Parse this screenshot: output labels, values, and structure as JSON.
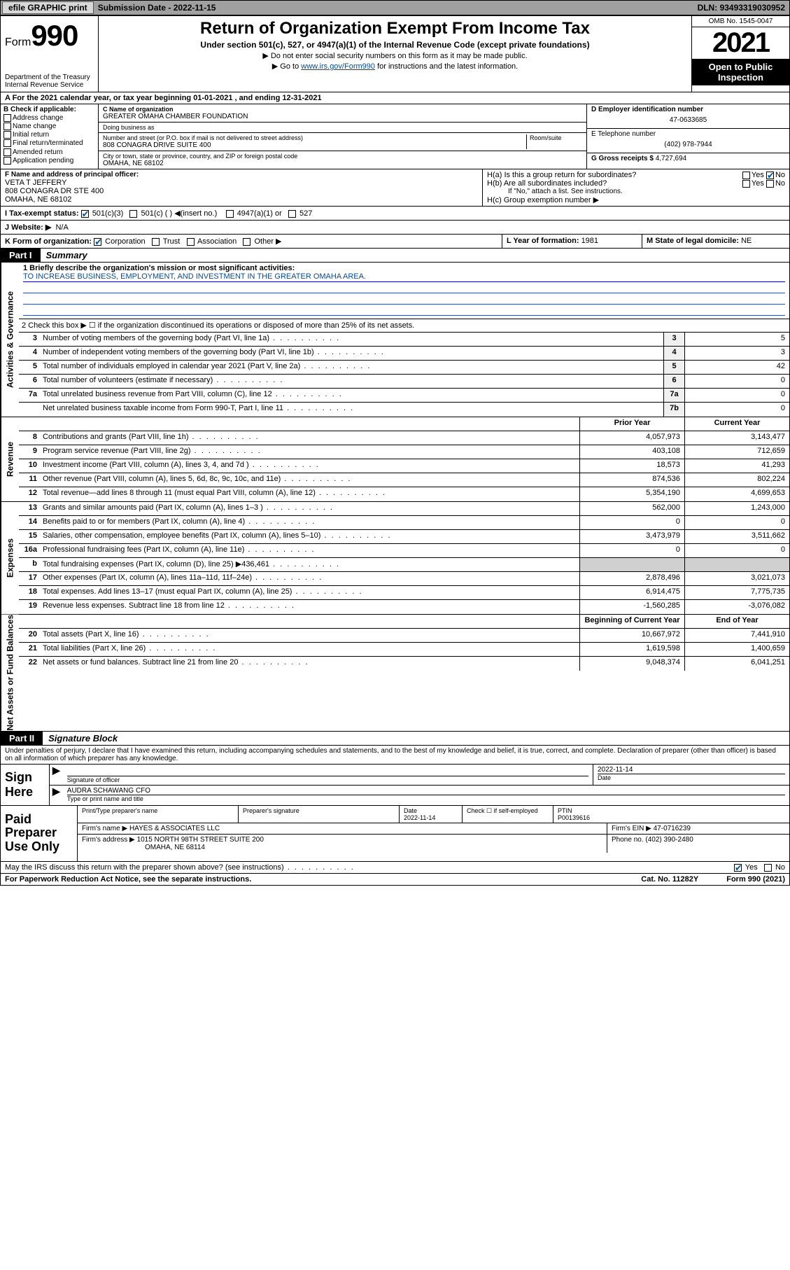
{
  "topbar": {
    "efile": "efile GRAPHIC print",
    "submission_label": "Submission Date - ",
    "submission_date": "2022-11-15",
    "dln_label": "DLN: ",
    "dln": "93493319030952"
  },
  "header": {
    "form_word": "Form",
    "form_num": "990",
    "dept": "Department of the Treasury",
    "irs": "Internal Revenue Service",
    "title": "Return of Organization Exempt From Income Tax",
    "subtitle": "Under section 501(c), 527, or 4947(a)(1) of the Internal Revenue Code (except private foundations)",
    "note1": "▶ Do not enter social security numbers on this form as it may be made public.",
    "note2_pre": "▶ Go to ",
    "note2_link": "www.irs.gov/Form990",
    "note2_post": " for instructions and the latest information.",
    "omb": "OMB No. 1545-0047",
    "year": "2021",
    "inspect": "Open to Public Inspection"
  },
  "row_a": "A For the 2021 calendar year, or tax year beginning 01-01-2021   , and ending 12-31-2021",
  "section_b": {
    "label": "B Check if applicable:",
    "addr": "Address change",
    "name": "Name change",
    "init": "Initial return",
    "final": "Final return/terminated",
    "amend": "Amended return",
    "app": "Application pending"
  },
  "section_c": {
    "name_label": "C Name of organization",
    "name": "GREATER OMAHA CHAMBER FOUNDATION",
    "dba_label": "Doing business as",
    "dba": "",
    "street_label": "Number and street (or P.O. box if mail is not delivered to street address)",
    "room_label": "Room/suite",
    "street": "808 CONAGRA DRIVE SUITE 400",
    "city_label": "City or town, state or province, country, and ZIP or foreign postal code",
    "city": "OMAHA, NE  68102"
  },
  "section_d": {
    "label": "D Employer identification number",
    "ein": "47-0633685"
  },
  "section_e": {
    "label": "E Telephone number",
    "phone": "(402) 978-7944"
  },
  "section_g": {
    "label": "G Gross receipts $ ",
    "amount": "4,727,694"
  },
  "section_f": {
    "label": "F Name and address of principal officer:",
    "name": "VETA T JEFFERY",
    "addr1": "808 CONAGRA DR STE 400",
    "addr2": "OMAHA, NE  68102"
  },
  "section_h": {
    "ha": "H(a)  Is this a group return for subordinates?",
    "hb": "H(b)  Are all subordinates included?",
    "hb_note": "If \"No,\" attach a list. See instructions.",
    "hc": "H(c)  Group exemption number ▶",
    "yes": "Yes",
    "no": "No"
  },
  "row_i": {
    "label": "I   Tax-exempt status:",
    "c3": "501(c)(3)",
    "c": "501(c) (  ) ◀(insert no.)",
    "a1": "4947(a)(1) or",
    "s527": "527"
  },
  "row_j": {
    "label": "J   Website: ▶",
    "val": "N/A"
  },
  "row_k": {
    "label": "K Form of organization:",
    "corp": "Corporation",
    "trust": "Trust",
    "assoc": "Association",
    "other": "Other ▶"
  },
  "row_l": {
    "label": "L Year of formation: ",
    "val": "1981"
  },
  "row_m": {
    "label": "M State of legal domicile: ",
    "val": "NE"
  },
  "parts": {
    "p1": "Part I",
    "p1t": "Summary",
    "p2": "Part II",
    "p2t": "Signature Block"
  },
  "vlabels": {
    "gov": "Activities & Governance",
    "rev": "Revenue",
    "exp": "Expenses",
    "net": "Net Assets or Fund Balances"
  },
  "summary": {
    "q1_label": "1   Briefly describe the organization's mission or most significant activities:",
    "q1_val": "TO INCREASE BUSINESS, EMPLOYMENT, AND INVESTMENT IN THE GREATER OMAHA AREA.",
    "q2": "2   Check this box ▶ ☐ if the organization discontinued its operations or disposed of more than 25% of its net assets.",
    "col_prior": "Prior Year",
    "col_current": "Current Year",
    "col_begin": "Beginning of Current Year",
    "col_end": "End of Year",
    "lines_single": [
      {
        "n": "3",
        "d": "Number of voting members of the governing body (Part VI, line 1a)",
        "box": "3",
        "v": "5"
      },
      {
        "n": "4",
        "d": "Number of independent voting members of the governing body (Part VI, line 1b)",
        "box": "4",
        "v": "3"
      },
      {
        "n": "5",
        "d": "Total number of individuals employed in calendar year 2021 (Part V, line 2a)",
        "box": "5",
        "v": "42"
      },
      {
        "n": "6",
        "d": "Total number of volunteers (estimate if necessary)",
        "box": "6",
        "v": "0"
      },
      {
        "n": "7a",
        "d": "Total unrelated business revenue from Part VIII, column (C), line 12",
        "box": "7a",
        "v": "0"
      },
      {
        "n": "",
        "d": "Net unrelated business taxable income from Form 990-T, Part I, line 11",
        "box": "7b",
        "v": "0"
      }
    ],
    "lines_rev": [
      {
        "n": "8",
        "d": "Contributions and grants (Part VIII, line 1h)",
        "p": "4,057,973",
        "c": "3,143,477"
      },
      {
        "n": "9",
        "d": "Program service revenue (Part VIII, line 2g)",
        "p": "403,108",
        "c": "712,659"
      },
      {
        "n": "10",
        "d": "Investment income (Part VIII, column (A), lines 3, 4, and 7d )",
        "p": "18,573",
        "c": "41,293"
      },
      {
        "n": "11",
        "d": "Other revenue (Part VIII, column (A), lines 5, 6d, 8c, 9c, 10c, and 11e)",
        "p": "874,536",
        "c": "802,224"
      },
      {
        "n": "12",
        "d": "Total revenue—add lines 8 through 11 (must equal Part VIII, column (A), line 12)",
        "p": "5,354,190",
        "c": "4,699,653"
      }
    ],
    "lines_exp": [
      {
        "n": "13",
        "d": "Grants and similar amounts paid (Part IX, column (A), lines 1–3 )",
        "p": "562,000",
        "c": "1,243,000"
      },
      {
        "n": "14",
        "d": "Benefits paid to or for members (Part IX, column (A), line 4)",
        "p": "0",
        "c": "0"
      },
      {
        "n": "15",
        "d": "Salaries, other compensation, employee benefits (Part IX, column (A), lines 5–10)",
        "p": "3,473,979",
        "c": "3,511,662"
      },
      {
        "n": "16a",
        "d": "Professional fundraising fees (Part IX, column (A), line 11e)",
        "p": "0",
        "c": "0"
      },
      {
        "n": "b",
        "d": "Total fundraising expenses (Part IX, column (D), line 25) ▶436,461",
        "p": "",
        "c": "",
        "grey": true
      },
      {
        "n": "17",
        "d": "Other expenses (Part IX, column (A), lines 11a–11d, 11f–24e)",
        "p": "2,878,496",
        "c": "3,021,073"
      },
      {
        "n": "18",
        "d": "Total expenses. Add lines 13–17 (must equal Part IX, column (A), line 25)",
        "p": "6,914,475",
        "c": "7,775,735"
      },
      {
        "n": "19",
        "d": "Revenue less expenses. Subtract line 18 from line 12",
        "p": "-1,560,285",
        "c": "-3,076,082"
      }
    ],
    "lines_net": [
      {
        "n": "20",
        "d": "Total assets (Part X, line 16)",
        "p": "10,667,972",
        "c": "7,441,910"
      },
      {
        "n": "21",
        "d": "Total liabilities (Part X, line 26)",
        "p": "1,619,598",
        "c": "1,400,659"
      },
      {
        "n": "22",
        "d": "Net assets or fund balances. Subtract line 21 from line 20",
        "p": "9,048,374",
        "c": "6,041,251"
      }
    ]
  },
  "sig": {
    "decl": "Under penalties of perjury, I declare that I have examined this return, including accompanying schedules and statements, and to the best of my knowledge and belief, it is true, correct, and complete. Declaration of preparer (other than officer) is based on all information of which preparer has any knowledge.",
    "sign_here": "Sign Here",
    "sig_of_officer": "Signature of officer",
    "date_label": "Date",
    "date": "2022-11-14",
    "officer_name": "AUDRA SCHAWANG CFO",
    "name_title": "Type or print name and title"
  },
  "prep": {
    "label": "Paid Preparer Use Only",
    "col_name": "Print/Type preparer's name",
    "col_sig": "Preparer's signature",
    "col_date": "Date",
    "date": "2022-11-14",
    "col_self": "Check ☐ if self-employed",
    "col_ptin": "PTIN",
    "ptin": "P00139616",
    "firm_name_label": "Firm's name    ▶ ",
    "firm_name": "HAYES & ASSOCIATES LLC",
    "firm_ein_label": "Firm's EIN ▶ ",
    "firm_ein": "47-0716239",
    "firm_addr_label": "Firm's address ▶ ",
    "firm_addr1": "1015 NORTH 98TH STREET SUITE 200",
    "firm_addr2": "OMAHA, NE  68114",
    "phone_label": "Phone no. ",
    "phone": "(402) 390-2480"
  },
  "discuss": {
    "q": "May the IRS discuss this return with the preparer shown above? (see instructions)",
    "yes": "Yes",
    "no": "No"
  },
  "footer": {
    "left": "For Paperwork Reduction Act Notice, see the separate instructions.",
    "mid": "Cat. No. 11282Y",
    "right": "Form 990 (2021)"
  }
}
